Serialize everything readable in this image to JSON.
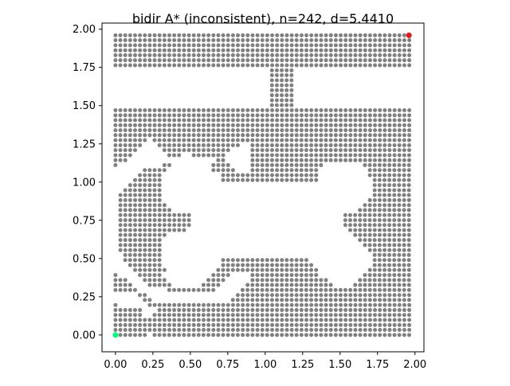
{
  "chart_data": {
    "type": "scatter",
    "title": "bidir A* (inconsistent), n=242, d=5.4410",
    "xlabel": "",
    "ylabel": "",
    "xlim": [
      -0.09,
      2.06
    ],
    "ylim": [
      -0.11,
      2.04
    ],
    "grid": false,
    "xticks": [
      {
        "value": 0.0,
        "label": "0.00"
      },
      {
        "value": 0.25,
        "label": "0.25"
      },
      {
        "value": 0.5,
        "label": "0.50"
      },
      {
        "value": 0.75,
        "label": "0.75"
      },
      {
        "value": 1.0,
        "label": "1.00"
      },
      {
        "value": 1.25,
        "label": "1.25"
      },
      {
        "value": 1.5,
        "label": "1.50"
      },
      {
        "value": 1.75,
        "label": "1.75"
      },
      {
        "value": 2.0,
        "label": "2.00"
      }
    ],
    "yticks": [
      {
        "value": 0.0,
        "label": "0.00"
      },
      {
        "value": 0.25,
        "label": "0.25"
      },
      {
        "value": 0.5,
        "label": "0.50"
      },
      {
        "value": 0.75,
        "label": "0.75"
      },
      {
        "value": 1.0,
        "label": "1.00"
      },
      {
        "value": 1.25,
        "label": "1.25"
      },
      {
        "value": 1.5,
        "label": "1.50"
      },
      {
        "value": 1.75,
        "label": "1.75"
      },
      {
        "value": 2.0,
        "label": "2.00"
      }
    ],
    "grid_spacing": 0.0327,
    "series": [
      {
        "role": "explored",
        "color": "#808080",
        "marker_size": 5,
        "rows": [
          {
            "y": 1.96,
            "ranges": [
              [
                0.0,
                1.96
              ]
            ]
          },
          {
            "y": 1.928,
            "ranges": [
              [
                0.0,
                1.96
              ]
            ]
          },
          {
            "y": 1.895,
            "ranges": [
              [
                0.0,
                1.96
              ]
            ]
          },
          {
            "y": 1.862,
            "ranges": [
              [
                0.0,
                1.96
              ]
            ]
          },
          {
            "y": 1.83,
            "ranges": [
              [
                0.0,
                1.96
              ]
            ]
          },
          {
            "y": 1.797,
            "ranges": [
              [
                0.0,
                1.96
              ]
            ]
          },
          {
            "y": 1.764,
            "ranges": [
              [
                0.0,
                1.96
              ]
            ]
          },
          {
            "y": 1.731,
            "ranges": [
              [
                1.045,
                1.176
              ]
            ]
          },
          {
            "y": 1.699,
            "ranges": [
              [
                1.045,
                1.176
              ]
            ]
          },
          {
            "y": 1.666,
            "ranges": [
              [
                1.045,
                1.176
              ]
            ]
          },
          {
            "y": 1.633,
            "ranges": [
              [
                1.045,
                1.176
              ]
            ]
          },
          {
            "y": 1.601,
            "ranges": [
              [
                1.045,
                1.176
              ]
            ]
          },
          {
            "y": 1.568,
            "ranges": [
              [
                1.045,
                1.176
              ]
            ]
          },
          {
            "y": 1.535,
            "ranges": [
              [
                1.045,
                1.176
              ]
            ]
          },
          {
            "y": 1.503,
            "ranges": [
              [
                1.045,
                1.176
              ]
            ]
          },
          {
            "y": 1.47,
            "ranges": [
              [
                0.0,
                1.96
              ]
            ]
          },
          {
            "y": 1.437,
            "ranges": [
              [
                0.0,
                1.96
              ]
            ]
          },
          {
            "y": 1.405,
            "ranges": [
              [
                0.0,
                1.96
              ]
            ]
          },
          {
            "y": 1.372,
            "ranges": [
              [
                0.0,
                1.96
              ]
            ]
          },
          {
            "y": 1.339,
            "ranges": [
              [
                0.0,
                1.96
              ]
            ]
          },
          {
            "y": 1.307,
            "ranges": [
              [
                0.0,
                1.96
              ]
            ]
          },
          {
            "y": 1.274,
            "ranges": [
              [
                0.0,
                0.196
              ],
              [
                0.261,
                0.882
              ],
              [
                0.915,
                1.96
              ]
            ]
          },
          {
            "y": 1.241,
            "ranges": [
              [
                0.0,
                0.163
              ],
              [
                0.294,
                0.817
              ],
              [
                0.915,
                1.96
              ]
            ]
          },
          {
            "y": 1.209,
            "ranges": [
              [
                0.0,
                0.131
              ],
              [
                0.327,
                0.751
              ],
              [
                0.915,
                1.96
              ]
            ]
          },
          {
            "y": 1.176,
            "ranges": [
              [
                0.0,
                0.098
              ],
              [
                0.359,
                0.425
              ],
              [
                0.523,
                0.719
              ],
              [
                0.915,
                1.96
              ]
            ]
          },
          {
            "y": 1.143,
            "ranges": [
              [
                0.0,
                0.065
              ],
              [
                0.686,
                0.719
              ],
              [
                0.915,
                1.96
              ]
            ]
          },
          {
            "y": 1.111,
            "ranges": [
              [
                0.0,
                0.0
              ],
              [
                0.327,
                0.359
              ],
              [
                0.654,
                0.751
              ],
              [
                0.915,
                1.372
              ],
              [
                1.666,
                1.96
              ]
            ]
          },
          {
            "y": 1.078,
            "ranges": [
              [
                0.196,
                0.327
              ],
              [
                0.654,
                0.784
              ],
              [
                0.915,
                1.339
              ],
              [
                1.699,
                1.96
              ]
            ]
          },
          {
            "y": 1.045,
            "ranges": [
              [
                0.163,
                0.294
              ],
              [
                0.719,
                1.339
              ],
              [
                1.699,
                1.96
              ]
            ]
          },
          {
            "y": 1.013,
            "ranges": [
              [
                0.131,
                0.294
              ],
              [
                0.719,
                1.339
              ],
              [
                1.731,
                1.96
              ]
            ]
          },
          {
            "y": 0.98,
            "ranges": [
              [
                0.098,
                0.294
              ],
              [
                1.731,
                1.96
              ]
            ]
          },
          {
            "y": 0.947,
            "ranges": [
              [
                0.065,
                0.294
              ],
              [
                1.731,
                1.96
              ]
            ]
          },
          {
            "y": 0.915,
            "ranges": [
              [
                0.033,
                0.294
              ],
              [
                1.731,
                1.96
              ]
            ]
          },
          {
            "y": 0.882,
            "ranges": [
              [
                0.033,
                0.294
              ],
              [
                1.699,
                1.96
              ]
            ]
          },
          {
            "y": 0.849,
            "ranges": [
              [
                0.033,
                0.327
              ],
              [
                1.666,
                1.96
              ]
            ]
          },
          {
            "y": 0.817,
            "ranges": [
              [
                0.033,
                0.359
              ],
              [
                1.633,
                1.96
              ]
            ]
          },
          {
            "y": 0.784,
            "ranges": [
              [
                0.033,
                0.49
              ],
              [
                1.535,
                1.96
              ]
            ]
          },
          {
            "y": 0.751,
            "ranges": [
              [
                0.033,
                0.49
              ],
              [
                1.535,
                1.96
              ]
            ]
          },
          {
            "y": 0.719,
            "ranges": [
              [
                0.033,
                0.49
              ],
              [
                1.535,
                1.96
              ]
            ]
          },
          {
            "y": 0.686,
            "ranges": [
              [
                0.033,
                0.457
              ],
              [
                1.568,
                1.96
              ]
            ]
          },
          {
            "y": 0.654,
            "ranges": [
              [
                0.033,
                0.327
              ],
              [
                1.601,
                1.96
              ]
            ]
          },
          {
            "y": 0.621,
            "ranges": [
              [
                0.033,
                0.294
              ],
              [
                1.633,
                1.96
              ]
            ]
          },
          {
            "y": 0.588,
            "ranges": [
              [
                0.033,
                0.294
              ],
              [
                1.666,
                1.96
              ]
            ]
          },
          {
            "y": 0.555,
            "ranges": [
              [
                0.033,
                0.294
              ],
              [
                1.699,
                1.96
              ]
            ]
          },
          {
            "y": 0.523,
            "ranges": [
              [
                0.065,
                0.294
              ],
              [
                1.731,
                1.96
              ]
            ]
          },
          {
            "y": 0.49,
            "ranges": [
              [
                0.065,
                0.294
              ],
              [
                0.719,
                1.274
              ],
              [
                1.731,
                1.96
              ]
            ]
          },
          {
            "y": 0.457,
            "ranges": [
              [
                0.098,
                0.294
              ],
              [
                0.719,
                1.307
              ],
              [
                1.731,
                1.96
              ]
            ]
          },
          {
            "y": 0.425,
            "ranges": [
              [
                0.131,
                0.327
              ],
              [
                0.686,
                1.339
              ],
              [
                1.699,
                1.96
              ]
            ]
          },
          {
            "y": 0.392,
            "ranges": [
              [
                0.0,
                0.0
              ],
              [
                0.163,
                0.294
              ],
              [
                0.654,
                0.751
              ],
              [
                0.915,
                1.339
              ],
              [
                1.666,
                1.96
              ]
            ]
          },
          {
            "y": 0.359,
            "ranges": [
              [
                0.0,
                0.065
              ],
              [
                0.196,
                0.327
              ],
              [
                0.621,
                0.719
              ],
              [
                0.915,
                1.405
              ],
              [
                1.633,
                1.96
              ]
            ]
          },
          {
            "y": 0.327,
            "ranges": [
              [
                0.0,
                0.098
              ],
              [
                0.229,
                0.359
              ],
              [
                0.588,
                0.686
              ],
              [
                0.882,
                1.437
              ],
              [
                1.601,
                1.96
              ]
            ]
          },
          {
            "y": 0.294,
            "ranges": [
              [
                0.0,
                0.131
              ],
              [
                0.359,
                0.654
              ],
              [
                0.849,
                1.96
              ]
            ]
          },
          {
            "y": 0.261,
            "ranges": [
              [
                0.163,
                0.196
              ],
              [
                0.817,
                1.96
              ]
            ]
          },
          {
            "y": 0.229,
            "ranges": [
              [
                0.196,
                0.229
              ],
              [
                0.784,
                1.96
              ]
            ]
          },
          {
            "y": 0.196,
            "ranges": [
              [
                0.0,
                0.0
              ],
              [
                0.229,
                1.96
              ]
            ]
          },
          {
            "y": 0.163,
            "ranges": [
              [
                0.0,
                0.163
              ],
              [
                0.294,
                1.96
              ]
            ]
          },
          {
            "y": 0.131,
            "ranges": [
              [
                0.0,
                0.163
              ],
              [
                0.261,
                1.96
              ]
            ]
          },
          {
            "y": 0.098,
            "ranges": [
              [
                0.0,
                0.196
              ],
              [
                0.229,
                1.96
              ]
            ]
          },
          {
            "y": 0.065,
            "ranges": [
              [
                0.0,
                1.96
              ]
            ]
          },
          {
            "y": 0.033,
            "ranges": [
              [
                0.0,
                1.96
              ]
            ]
          },
          {
            "y": 0.0,
            "ranges": [
              [
                0.033,
                0.196
              ],
              [
                0.261,
                1.96
              ]
            ]
          }
        ]
      },
      {
        "role": "start",
        "color": "#00ff7f",
        "marker_size": 7,
        "points": [
          {
            "x": 0.0,
            "y": 0.0
          }
        ]
      },
      {
        "role": "goal",
        "color": "#e31a1c",
        "marker_size": 7,
        "points": [
          {
            "x": 1.96,
            "y": 1.96
          }
        ]
      }
    ]
  }
}
